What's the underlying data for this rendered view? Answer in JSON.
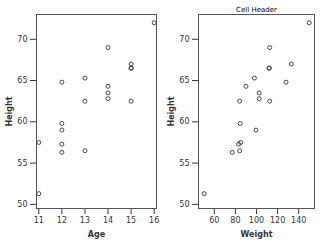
{
  "chart_data": [
    {
      "type": "scatter",
      "xlabel": "Age",
      "ylabel": "Height",
      "x": [
        14,
        13,
        13,
        14,
        14,
        12,
        12,
        15,
        13,
        12,
        11,
        14,
        12,
        15,
        16,
        12,
        15,
        11,
        15
      ],
      "values": [
        69.0,
        56.5,
        65.3,
        62.8,
        63.5,
        57.3,
        59.8,
        62.5,
        62.5,
        59.0,
        51.3,
        64.3,
        56.3,
        66.5,
        72.0,
        64.8,
        67.0,
        57.5,
        66.5
      ],
      "xlim": [
        10.9,
        16.1
      ],
      "xticks": [
        11,
        12,
        13,
        14,
        15,
        16
      ],
      "ylim": [
        49.5,
        73
      ],
      "yticks": [
        50,
        55,
        60,
        65,
        70
      ],
      "marker": "open_circle",
      "color": "#333333"
    },
    {
      "type": "scatter",
      "title": "Cell Header",
      "xlabel": "Weight",
      "ylabel": "Height",
      "x": [
        112.5,
        84.0,
        98.0,
        102.5,
        102.5,
        83.0,
        84.5,
        112.5,
        84.0,
        99.5,
        50.5,
        90.0,
        77.0,
        112.0,
        150.0,
        128.0,
        133.0,
        85.0,
        112.0
      ],
      "values": [
        69.0,
        56.5,
        65.3,
        62.8,
        63.5,
        57.3,
        59.8,
        62.5,
        62.5,
        59.0,
        51.3,
        64.3,
        56.3,
        66.5,
        72.0,
        64.8,
        67.0,
        57.5,
        66.5
      ],
      "xlim": [
        45,
        155
      ],
      "xticks": [
        60,
        80,
        100,
        120,
        140
      ],
      "ylim": [
        49.5,
        73
      ],
      "yticks": [
        50,
        55,
        60,
        65,
        70
      ],
      "marker": "open_circle",
      "color": "#333333"
    }
  ]
}
